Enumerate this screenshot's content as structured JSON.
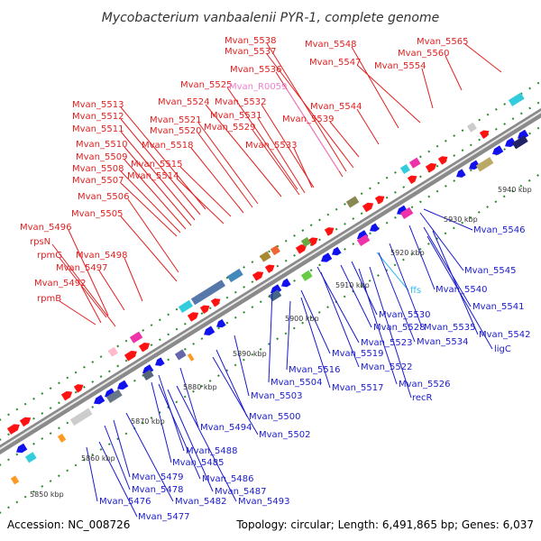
{
  "title": "Mycobacterium vanbaalenii PYR-1, complete genome",
  "footer": {
    "accession": "Accession: NC_008726",
    "summary": "Topology: circular; Length: 6,491,865 bp; Genes: 6,037"
  },
  "colors": {
    "forward_label": "#e02020",
    "reverse_label": "#1a1acc",
    "rna_label": "#f080d0",
    "ffs_label": "#33bbee",
    "backbone": "#888888",
    "tick": "#2a8a2a"
  },
  "scale_labels": [
    "5850 kbp",
    "5860 kbp",
    "5870 kbp",
    "5880 kbp",
    "5890 kbp",
    "5900 kbp",
    "5910 kbp",
    "5920 kbp",
    "5930 kbp",
    "5940 kbp"
  ],
  "forward_genes": [
    "Mvan_5538",
    "Mvan_5537",
    "Mvan_5548",
    "Mvan_5565",
    "Mvan_5560",
    "Mvan_5547",
    "Mvan_5554",
    "Mvan_5536",
    "Mvan_5525",
    "Mvan_5532",
    "Mvan_5524",
    "Mvan_5531",
    "Mvan_5544",
    "Mvan_5539",
    "Mvan_5513",
    "Mvan_5521",
    "Mvan_5512",
    "Mvan_5520",
    "Mvan_5529",
    "Mvan_5511",
    "Mvan_5518",
    "Mvan_5533",
    "Mvan_5510",
    "Mvan_5509",
    "Mvan_5515",
    "Mvan_5508",
    "Mvan_5514",
    "Mvan_5507",
    "Mvan_5506",
    "Mvan_5505",
    "Mvan_5496",
    "rpsN",
    "Mvan_5498",
    "rpmG",
    "Mvan_5497",
    "Mvan_5492",
    "rpmB"
  ],
  "rna_genes": [
    "Mvan_R0059"
  ],
  "ffs_genes": [
    "ffs"
  ],
  "reverse_genes": [
    "Mvan_5546",
    "Mvan_5545",
    "Mvan_5540",
    "Mvan_5541",
    "Mvan_5530",
    "Mvan_5528",
    "Mvan_5535",
    "Mvan_5542",
    "ligC",
    "Mvan_5534",
    "Mvan_5523",
    "Mvan_5519",
    "Mvan_5522",
    "Mvan_5516",
    "Mvan_5517",
    "Mvan_5526",
    "recR",
    "Mvan_5504",
    "Mvan_5503",
    "Mvan_5500",
    "Mvan_5502",
    "Mvan_5494",
    "Mvan_5488",
    "Mvan_5485",
    "Mvan_5479",
    "Mvan_5486",
    "Mvan_5478",
    "Mvan_5487",
    "Mvan_5476",
    "Mvan_5482",
    "Mvan_5493",
    "Mvan_5477"
  ]
}
